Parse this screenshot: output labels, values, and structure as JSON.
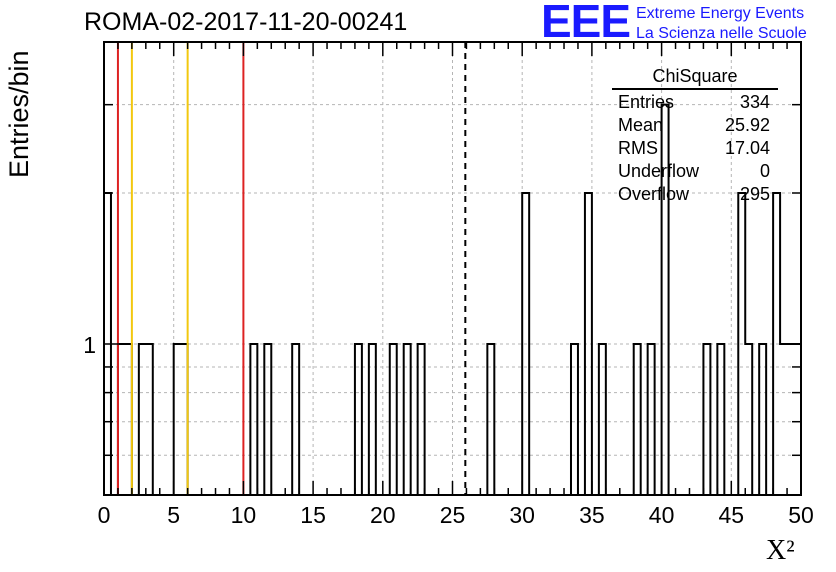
{
  "title": "ROMA-02-2017-11-20-00241",
  "logo": {
    "mark": "EEE",
    "line1": "Extreme Energy Events",
    "line2": "La Scienza nelle Scuole",
    "color": "#1a1aff"
  },
  "stats_box": {
    "header": "ChiSquare",
    "rows": [
      {
        "label": "Entries",
        "value": "334"
      },
      {
        "label": "Mean",
        "value": "25.92"
      },
      {
        "label": "RMS",
        "value": "17.04"
      },
      {
        "label": "Underflow",
        "value": "0"
      },
      {
        "label": "Overflow",
        "value": "295"
      }
    ]
  },
  "chart_data": {
    "type": "bar",
    "title": "ROMA-02-2017-11-20-00241",
    "xlabel": "X²",
    "ylabel": "Entries/bin",
    "xlim": [
      0,
      50
    ],
    "ylim": [
      0.5,
      4
    ],
    "y_log": true,
    "grid": true,
    "bin_width": 0.5,
    "x_ticks": [
      0,
      5,
      10,
      15,
      20,
      25,
      30,
      35,
      40,
      45,
      50
    ],
    "y_ticks": [
      1
    ],
    "bins": [
      {
        "x": 0.0,
        "y": 2
      },
      {
        "x": 0.5,
        "y": 0
      },
      {
        "x": 1.0,
        "y": 1
      },
      {
        "x": 1.5,
        "y": 1
      },
      {
        "x": 2.0,
        "y": 0
      },
      {
        "x": 2.5,
        "y": 1
      },
      {
        "x": 3.0,
        "y": 1
      },
      {
        "x": 5.0,
        "y": 1
      },
      {
        "x": 5.5,
        "y": 1
      },
      {
        "x": 6.0,
        "y": 0
      },
      {
        "x": 10.5,
        "y": 1
      },
      {
        "x": 11.5,
        "y": 1
      },
      {
        "x": 13.5,
        "y": 1
      },
      {
        "x": 18.0,
        "y": 1
      },
      {
        "x": 19.0,
        "y": 1
      },
      {
        "x": 20.5,
        "y": 1
      },
      {
        "x": 21.5,
        "y": 1
      },
      {
        "x": 22.5,
        "y": 1
      },
      {
        "x": 27.5,
        "y": 1
      },
      {
        "x": 30.0,
        "y": 2
      },
      {
        "x": 33.5,
        "y": 1
      },
      {
        "x": 34.5,
        "y": 2
      },
      {
        "x": 35.5,
        "y": 1
      },
      {
        "x": 38.0,
        "y": 1
      },
      {
        "x": 39.0,
        "y": 1
      },
      {
        "x": 40.0,
        "y": 3
      },
      {
        "x": 43.0,
        "y": 1
      },
      {
        "x": 44.0,
        "y": 1
      },
      {
        "x": 45.5,
        "y": 2
      },
      {
        "x": 46.0,
        "y": 1
      },
      {
        "x": 47.0,
        "y": 1
      },
      {
        "x": 48.0,
        "y": 2
      },
      {
        "x": 48.5,
        "y": 1
      },
      {
        "x": 49.0,
        "y": 1
      },
      {
        "x": 49.5,
        "y": 1
      }
    ],
    "vertical_lines": [
      {
        "x": 1,
        "color": "#dd2222",
        "style": "solid"
      },
      {
        "x": 2,
        "color": "#f2c80f",
        "style": "solid"
      },
      {
        "x": 6,
        "color": "#f2c80f",
        "style": "solid"
      },
      {
        "x": 10,
        "color": "#dd2222",
        "style": "solid"
      },
      {
        "x": 25.92,
        "color": "#000000",
        "style": "dashed"
      }
    ]
  }
}
